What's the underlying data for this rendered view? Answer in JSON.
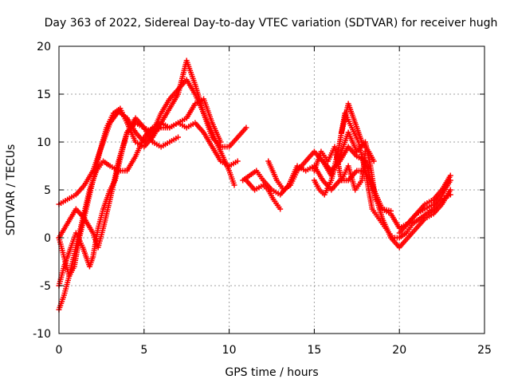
{
  "chart_data": {
    "type": "scatter",
    "title": "Day 363 of 2022, Sidereal Day-to-day VTEC variation (SDTVAR) for receiver hugh",
    "xlabel": "GPS time / hours",
    "ylabel": "SDTVAR / TECUs",
    "xlim": [
      0,
      25
    ],
    "ylim": [
      -10,
      20
    ],
    "xticks": [
      "0",
      "5",
      "10",
      "15",
      "20",
      "25"
    ],
    "yticks": [
      "-10",
      "-5",
      "0",
      "5",
      "10",
      "15",
      "20"
    ],
    "grid": true,
    "marker": "plus",
    "color": "#ff0000",
    "series": [
      {
        "name": "track-1",
        "points": [
          [
            0,
            3.5
          ],
          [
            0.5,
            4
          ],
          [
            1,
            4.5
          ],
          [
            1.5,
            5.5
          ],
          [
            2,
            7
          ],
          [
            2.5,
            9.5
          ],
          [
            3,
            12
          ],
          [
            3.5,
            13.2
          ],
          [
            4,
            12.5
          ],
          [
            4.5,
            11
          ],
          [
            5,
            10
          ],
          [
            5.5,
            11
          ],
          [
            6,
            13
          ],
          [
            6.5,
            14.5
          ],
          [
            7,
            15.5
          ],
          [
            7.5,
            16.5
          ],
          [
            8,
            15
          ],
          [
            8.5,
            13
          ],
          [
            9,
            11
          ],
          [
            9.5,
            9
          ],
          [
            10,
            7
          ],
          [
            10.3,
            5.5
          ]
        ]
      },
      {
        "name": "track-2",
        "points": [
          [
            0,
            0
          ],
          [
            0.3,
            -2
          ],
          [
            0.6,
            -4
          ],
          [
            0.9,
            -3
          ],
          [
            1.2,
            0
          ],
          [
            1.6,
            3
          ],
          [
            2,
            6
          ],
          [
            2.4,
            9
          ],
          [
            2.8,
            11.5
          ],
          [
            3.2,
            13
          ],
          [
            3.6,
            13.5
          ],
          [
            4,
            12
          ],
          [
            4.5,
            10
          ],
          [
            5,
            9.5
          ],
          [
            5.5,
            10.5
          ],
          [
            6,
            12
          ],
          [
            6.5,
            13.5
          ],
          [
            7,
            15
          ],
          [
            7.5,
            18.5
          ],
          [
            8,
            16
          ],
          [
            8.5,
            13
          ],
          [
            9,
            10.5
          ],
          [
            9.5,
            9.5
          ],
          [
            10,
            9.5
          ],
          [
            10.5,
            10.5
          ],
          [
            11,
            11.5
          ]
        ]
      },
      {
        "name": "track-3",
        "points": [
          [
            0,
            -7.5
          ],
          [
            0.3,
            -6
          ],
          [
            0.6,
            -4
          ],
          [
            1,
            -1
          ],
          [
            1.4,
            2
          ],
          [
            1.8,
            5
          ],
          [
            2.2,
            7
          ],
          [
            2.6,
            8
          ],
          [
            3,
            7.5
          ],
          [
            3.5,
            7
          ],
          [
            4,
            7
          ],
          [
            4.5,
            8.5
          ],
          [
            5,
            10.5
          ],
          [
            5.5,
            11.5
          ],
          [
            6,
            12
          ],
          [
            6.5,
            11.5
          ],
          [
            7,
            12
          ],
          [
            7.5,
            11.5
          ],
          [
            8,
            12
          ],
          [
            8.5,
            11
          ],
          [
            9,
            9.5
          ],
          [
            9.5,
            8
          ],
          [
            10,
            7.5
          ],
          [
            10.5,
            8
          ]
        ]
      },
      {
        "name": "track-4",
        "points": [
          [
            0,
            -5
          ],
          [
            0.3,
            -3
          ],
          [
            0.7,
            -1
          ],
          [
            1,
            0.5
          ],
          [
            1.4,
            -1
          ],
          [
            1.8,
            -3
          ],
          [
            2,
            -2
          ],
          [
            2.3,
            1
          ],
          [
            2.6,
            3
          ],
          [
            3,
            5
          ],
          [
            3.3,
            6
          ],
          [
            3.7,
            9
          ],
          [
            4,
            11
          ],
          [
            4.5,
            12
          ],
          [
            5,
            11.5
          ],
          [
            5.5,
            11
          ],
          [
            6,
            11.5
          ],
          [
            6.5,
            11.5
          ],
          [
            7,
            12
          ],
          [
            7.5,
            12.5
          ],
          [
            8,
            14
          ],
          [
            8.5,
            14.5
          ],
          [
            9,
            12
          ],
          [
            9.5,
            10
          ]
        ]
      },
      {
        "name": "track-5",
        "points": [
          [
            0,
            0
          ],
          [
            0.5,
            1.5
          ],
          [
            1,
            3
          ],
          [
            1.5,
            2
          ],
          [
            2,
            0.5
          ],
          [
            2.3,
            -1
          ],
          [
            2.6,
            1
          ],
          [
            3,
            4
          ],
          [
            3.5,
            8
          ],
          [
            4,
            11
          ],
          [
            4.5,
            12.5
          ],
          [
            5,
            11.5
          ],
          [
            5.5,
            10
          ],
          [
            6,
            9.5
          ],
          [
            6.5,
            10
          ],
          [
            7,
            10.5
          ]
        ]
      },
      {
        "name": "track-6",
        "points": [
          [
            11,
            6
          ],
          [
            11.5,
            5
          ],
          [
            12,
            5.5
          ],
          [
            12.3,
            5
          ],
          [
            12.6,
            4
          ],
          [
            13,
            3
          ]
        ]
      },
      {
        "name": "track-7",
        "points": [
          [
            10.8,
            6
          ],
          [
            11.2,
            6.5
          ],
          [
            11.6,
            7
          ],
          [
            12,
            6
          ],
          [
            12.5,
            5
          ],
          [
            13,
            4.5
          ],
          [
            13.5,
            5.5
          ],
          [
            14,
            7.5
          ],
          [
            14.5,
            7
          ],
          [
            15,
            7.5
          ],
          [
            15.5,
            6
          ],
          [
            16,
            5
          ],
          [
            16.5,
            6
          ],
          [
            17,
            6
          ],
          [
            17.5,
            7
          ],
          [
            18,
            7
          ],
          [
            18.5,
            5
          ],
          [
            19,
            2
          ],
          [
            19.5,
            0
          ],
          [
            20,
            -1
          ],
          [
            20.5,
            0
          ],
          [
            21,
            1
          ],
          [
            21.5,
            2
          ],
          [
            22,
            2.5
          ],
          [
            22.5,
            3.5
          ],
          [
            23,
            5
          ]
        ]
      },
      {
        "name": "track-8",
        "points": [
          [
            12.3,
            8
          ],
          [
            12.8,
            6
          ],
          [
            13.2,
            5
          ],
          [
            13.6,
            5.5
          ],
          [
            14,
            7
          ],
          [
            14.5,
            8
          ],
          [
            15,
            9
          ],
          [
            15.5,
            8
          ],
          [
            16,
            7
          ],
          [
            16.5,
            8
          ],
          [
            17,
            9.5
          ],
          [
            17.5,
            8.5
          ],
          [
            18,
            8
          ],
          [
            18.5,
            5
          ],
          [
            19,
            3
          ],
          [
            19.5,
            2.5
          ],
          [
            20,
            1
          ],
          [
            20.5,
            1.5
          ],
          [
            21,
            2.5
          ],
          [
            21.5,
            3.5
          ],
          [
            22,
            4
          ],
          [
            22.5,
            5
          ],
          [
            23,
            6.5
          ]
        ]
      },
      {
        "name": "track-9",
        "points": [
          [
            15,
            6
          ],
          [
            15.3,
            5
          ],
          [
            15.6,
            4.5
          ],
          [
            16,
            6
          ],
          [
            16.4,
            9
          ],
          [
            16.8,
            13
          ],
          [
            17.2,
            11.5
          ],
          [
            17.6,
            10
          ],
          [
            18,
            7
          ],
          [
            18.4,
            3
          ],
          [
            18.8,
            2
          ],
          [
            19.2,
            1
          ],
          [
            19.6,
            0
          ],
          [
            20,
            0
          ],
          [
            20.4,
            0.5
          ],
          [
            20.8,
            1.5
          ],
          [
            21.2,
            2
          ],
          [
            21.6,
            2.5
          ],
          [
            22,
            3
          ],
          [
            22.5,
            4
          ],
          [
            23,
            4.5
          ]
        ]
      },
      {
        "name": "track-10",
        "points": [
          [
            15.5,
            8
          ],
          [
            16,
            6.5
          ],
          [
            16.5,
            8.5
          ],
          [
            17,
            11
          ],
          [
            17.5,
            9
          ],
          [
            18,
            10
          ],
          [
            18.3,
            7.5
          ],
          [
            18.6,
            4
          ],
          [
            19,
            3
          ],
          [
            19.5,
            2.8
          ]
        ]
      },
      {
        "name": "track-11",
        "points": [
          [
            15,
            7
          ],
          [
            15.4,
            9
          ],
          [
            15.8,
            8
          ],
          [
            16.2,
            9.5
          ],
          [
            16.6,
            6
          ],
          [
            17,
            7.5
          ],
          [
            17.4,
            5
          ],
          [
            17.8,
            6
          ],
          [
            18,
            9
          ]
        ]
      },
      {
        "name": "track-12",
        "points": [
          [
            16.6,
            11
          ],
          [
            17,
            14
          ],
          [
            17.4,
            12
          ],
          [
            17.8,
            10
          ],
          [
            18.2,
            9
          ],
          [
            18.5,
            8
          ]
        ]
      },
      {
        "name": "track-13",
        "points": [
          [
            20,
            0.5
          ],
          [
            20.5,
            1.5
          ],
          [
            21,
            2.5
          ],
          [
            21.5,
            3
          ],
          [
            22,
            3.5
          ],
          [
            22.5,
            4.5
          ],
          [
            23,
            6
          ]
        ]
      }
    ]
  }
}
